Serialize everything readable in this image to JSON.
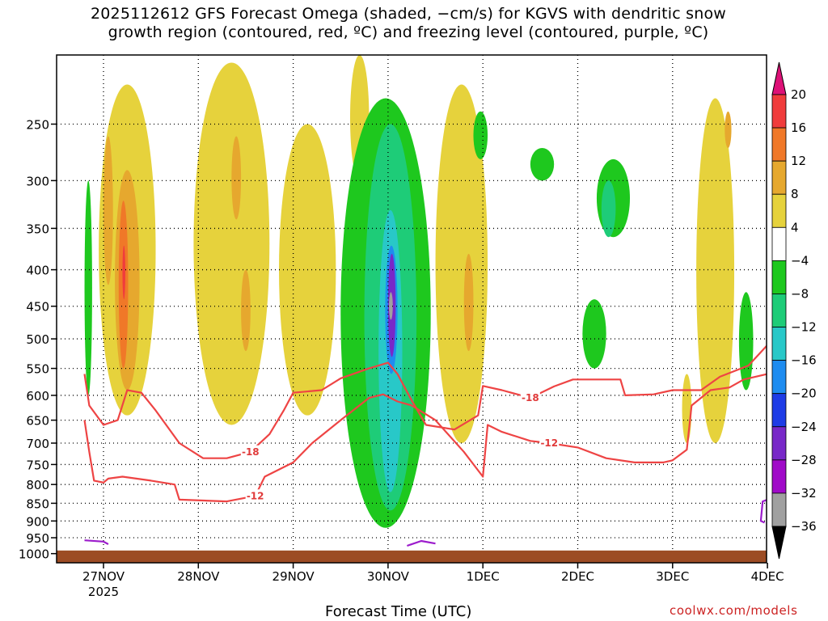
{
  "title_line1": "2025112612 GFS Forecast Omega (shaded, −cm/s) for KGVS with dendritic snow",
  "title_line2": "growth region (contoured, red, ºC) and freezing level (contoured, purple, ºC)",
  "credit": "coolwx.com/models",
  "chart_data": {
    "type": "heatmap",
    "title": "2025112612 GFS Forecast Omega (shaded, −cm/s) for KGVS with dendritic snow growth region (contoured, red, ºC) and freezing level (contoured, purple, ºC)",
    "xlabel": "Forecast Time (UTC)",
    "ylabel": "",
    "x_range_days": [
      -0.2,
      7.0
    ],
    "x_ticks": [
      {
        "day": 0,
        "label": "27NOV",
        "sublabel": "2025"
      },
      {
        "day": 1,
        "label": "28NOV"
      },
      {
        "day": 2,
        "label": "29NOV"
      },
      {
        "day": 3,
        "label": "30NOV"
      },
      {
        "day": 4,
        "label": "1DEC"
      },
      {
        "day": 5,
        "label": "2DEC"
      },
      {
        "day": 6,
        "label": "3DEC"
      },
      {
        "day": 7,
        "label": "4DEC"
      }
    ],
    "y_axis": "pressure (hPa), log scale, inverted",
    "y_range": [
      200,
      1030
    ],
    "y_ticks": [
      250,
      300,
      350,
      400,
      450,
      500,
      550,
      600,
      650,
      700,
      750,
      800,
      850,
      900,
      950,
      1000
    ],
    "grid": "dotted",
    "colorbar": {
      "labels": [
        "20",
        "16",
        "12",
        "8",
        "4",
        "−4",
        "−8",
        "−12",
        "−16",
        "−20",
        "−24",
        "−28",
        "−32",
        "−36"
      ],
      "top_arrow_color": "#dd1177",
      "bottom_arrow_color": "#000000",
      "bands": [
        {
          "range": [
            16,
            20
          ],
          "color": "#f03c3c"
        },
        {
          "range": [
            12,
            16
          ],
          "color": "#f07828"
        },
        {
          "range": [
            8,
            12
          ],
          "color": "#e6a82e"
        },
        {
          "range": [
            4,
            8
          ],
          "color": "#e6d23c"
        },
        {
          "range": [
            -4,
            4
          ],
          "color": "#ffffff"
        },
        {
          "range": [
            -8,
            -4
          ],
          "color": "#1ec81e"
        },
        {
          "range": [
            -12,
            -8
          ],
          "color": "#1ecc78"
        },
        {
          "range": [
            -16,
            -12
          ],
          "color": "#28c8c8"
        },
        {
          "range": [
            -20,
            -16
          ],
          "color": "#1e8cf0"
        },
        {
          "range": [
            -24,
            -20
          ],
          "color": "#1e3ce6"
        },
        {
          "range": [
            -28,
            -24
          ],
          "color": "#7828c8"
        },
        {
          "range": [
            -32,
            -28
          ],
          "color": "#a00ac8"
        },
        {
          "range": [
            -36,
            -32
          ],
          "color": "#a0a0a0"
        }
      ]
    },
    "shaded_regions": [
      {
        "value": 6,
        "t0": -0.05,
        "t1": 0.55,
        "p0": 220,
        "p1": 640
      },
      {
        "value": 10,
        "t0": 0.0,
        "t1": 0.1,
        "p0": 260,
        "p1": 420
      },
      {
        "value": 10,
        "t0": 0.12,
        "t1": 0.38,
        "p0": 290,
        "p1": 590
      },
      {
        "value": 14,
        "t0": 0.16,
        "t1": 0.26,
        "p0": 320,
        "p1": 550
      },
      {
        "value": 18,
        "t0": 0.2,
        "t1": 0.23,
        "p0": 370,
        "p1": 440
      },
      {
        "value": -6,
        "t0": -0.2,
        "t1": -0.12,
        "p0": 300,
        "p1": 600
      },
      {
        "value": 6,
        "t0": 0.95,
        "t1": 1.75,
        "p0": 205,
        "p1": 660
      },
      {
        "value": 10,
        "t0": 1.35,
        "t1": 1.45,
        "p0": 260,
        "p1": 340
      },
      {
        "value": 10,
        "t0": 1.45,
        "t1": 1.55,
        "p0": 400,
        "p1": 520
      },
      {
        "value": 6,
        "t0": 1.85,
        "t1": 2.45,
        "p0": 250,
        "p1": 640
      },
      {
        "value": 6,
        "t0": 2.6,
        "t1": 2.8,
        "p0": 200,
        "p1": 300
      },
      {
        "value": -6,
        "t0": 2.5,
        "t1": 3.45,
        "p0": 230,
        "p1": 920
      },
      {
        "value": -10,
        "t0": 2.75,
        "t1": 3.3,
        "p0": 250,
        "p1": 870
      },
      {
        "value": -14,
        "t0": 2.9,
        "t1": 3.15,
        "p0": 330,
        "p1": 820
      },
      {
        "value": -18,
        "t0": 2.97,
        "t1": 3.1,
        "p0": 370,
        "p1": 560
      },
      {
        "value": -26,
        "t0": 3.0,
        "t1": 3.08,
        "p0": 380,
        "p1": 530
      },
      {
        "value": -34,
        "t0": 3.01,
        "t1": 3.05,
        "p0": 430,
        "p1": 470
      },
      {
        "value": 6,
        "t0": 3.5,
        "t1": 4.05,
        "p0": 220,
        "p1": 700
      },
      {
        "value": 10,
        "t0": 3.8,
        "t1": 3.9,
        "p0": 380,
        "p1": 520
      },
      {
        "value": -6,
        "t0": 3.9,
        "t1": 4.05,
        "p0": 240,
        "p1": 280
      },
      {
        "value": -6,
        "t0": 4.5,
        "t1": 4.75,
        "p0": 270,
        "p1": 300
      },
      {
        "value": -6,
        "t0": 5.2,
        "t1": 5.55,
        "p0": 280,
        "p1": 360
      },
      {
        "value": -10,
        "t0": 5.25,
        "t1": 5.4,
        "p0": 300,
        "p1": 360
      },
      {
        "value": -6,
        "t0": 5.05,
        "t1": 5.3,
        "p0": 440,
        "p1": 550
      },
      {
        "value": 6,
        "t0": 6.25,
        "t1": 6.65,
        "p0": 230,
        "p1": 700
      },
      {
        "value": 10,
        "t0": 6.55,
        "t1": 6.62,
        "p0": 240,
        "p1": 270
      },
      {
        "value": -6,
        "t0": 6.7,
        "t1": 6.85,
        "p0": 430,
        "p1": 590
      },
      {
        "value": 6,
        "t0": 6.1,
        "t1": 6.2,
        "p0": 560,
        "p1": 700
      }
    ],
    "contours": [
      {
        "name": "dendritic -12 ºC",
        "color": "#ee4444",
        "label": "-12",
        "points": [
          [
            -0.2,
            650
          ],
          [
            -0.15,
            720
          ],
          [
            -0.1,
            790
          ],
          [
            0.0,
            795
          ],
          [
            0.05,
            785
          ],
          [
            0.2,
            780
          ],
          [
            0.5,
            790
          ],
          [
            0.75,
            800
          ],
          [
            0.8,
            840
          ],
          [
            1.3,
            845
          ],
          [
            1.6,
            830
          ],
          [
            1.7,
            780
          ],
          [
            2.0,
            745
          ],
          [
            2.2,
            700
          ],
          [
            2.5,
            650
          ],
          [
            2.8,
            605
          ],
          [
            2.95,
            598
          ],
          [
            3.1,
            612
          ],
          [
            3.25,
            620
          ],
          [
            3.5,
            650
          ],
          [
            3.8,
            720
          ],
          [
            4.0,
            780
          ],
          [
            4.05,
            660
          ],
          [
            4.2,
            675
          ],
          [
            4.5,
            695
          ],
          [
            4.7,
            700
          ],
          [
            5.0,
            710
          ],
          [
            5.3,
            735
          ],
          [
            5.6,
            745
          ],
          [
            5.9,
            745
          ],
          [
            6.0,
            740
          ],
          [
            6.15,
            715
          ],
          [
            6.2,
            620
          ],
          [
            6.4,
            590
          ],
          [
            6.6,
            585
          ],
          [
            6.75,
            570
          ],
          [
            7.0,
            560
          ]
        ]
      },
      {
        "name": "dendritic -18 ºC",
        "color": "#ee4444",
        "label": "-18",
        "points": [
          [
            -0.2,
            560
          ],
          [
            -0.15,
            620
          ],
          [
            0.0,
            660
          ],
          [
            0.15,
            650
          ],
          [
            0.25,
            590
          ],
          [
            0.4,
            595
          ],
          [
            0.55,
            630
          ],
          [
            0.8,
            700
          ],
          [
            1.05,
            735
          ],
          [
            1.3,
            735
          ],
          [
            1.55,
            720
          ],
          [
            1.75,
            680
          ],
          [
            1.9,
            630
          ],
          [
            2.0,
            595
          ],
          [
            2.3,
            590
          ],
          [
            2.5,
            568
          ],
          [
            2.8,
            550
          ],
          [
            3.0,
            540
          ],
          [
            3.1,
            560
          ],
          [
            3.25,
            610
          ],
          [
            3.4,
            660
          ],
          [
            3.7,
            670
          ],
          [
            3.95,
            640
          ],
          [
            4.0,
            582
          ],
          [
            4.2,
            590
          ],
          [
            4.5,
            605
          ],
          [
            4.75,
            583
          ],
          [
            4.95,
            570
          ],
          [
            5.3,
            570
          ],
          [
            5.45,
            570
          ],
          [
            5.5,
            600
          ],
          [
            5.8,
            598
          ],
          [
            6.0,
            590
          ],
          [
            6.3,
            590
          ],
          [
            6.5,
            565
          ],
          [
            6.8,
            545
          ],
          [
            7.0,
            510
          ]
        ]
      },
      {
        "name": "freezing level 0 ºC",
        "color": "#9c1ccc",
        "points": [
          [
            -0.2,
            958
          ],
          [
            0.0,
            962
          ],
          [
            0.05,
            970
          ]
        ]
      },
      {
        "name": "freezing level 0 ºC (30NOV)",
        "color": "#9c1ccc",
        "points": [
          [
            3.2,
            975
          ],
          [
            3.35,
            960
          ],
          [
            3.5,
            968
          ]
        ]
      },
      {
        "name": "freezing level 0 ºC (4DEC)",
        "color": "#9c1ccc",
        "points": [
          [
            7.0,
            840
          ],
          [
            6.95,
            845
          ],
          [
            6.93,
            900
          ],
          [
            6.97,
            905
          ]
        ]
      }
    ],
    "terrain_surface_hPa": 990,
    "terrain_color": "#9c4c24"
  }
}
